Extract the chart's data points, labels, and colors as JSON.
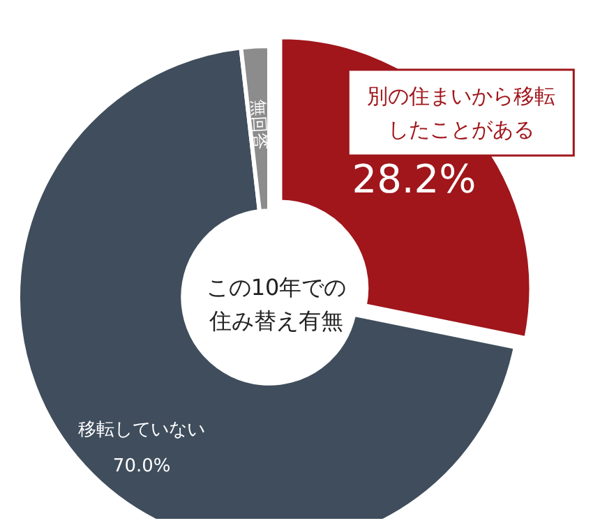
{
  "chart_data": {
    "type": "donut",
    "title": "この10年での住み替え有無",
    "categories": [
      "別の住まいから移転したことがある",
      "移転していない",
      "無回答"
    ],
    "values": [
      28.2,
      70.0,
      1.8
    ],
    "colors": [
      "#a0161b",
      "#3f4d5c",
      "#8c8c8c"
    ],
    "value_labels": [
      "28.2%",
      "70.0%",
      null
    ]
  }
}
